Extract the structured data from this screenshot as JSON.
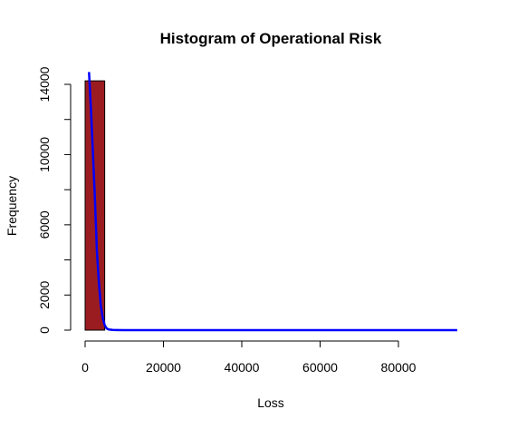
{
  "chart_data": {
    "type": "bar",
    "title": "Histogram of Operational Risk",
    "xlabel": "Loss",
    "ylabel": "Frequency",
    "xlim": [
      0,
      95000
    ],
    "ylim": [
      0,
      14200
    ],
    "x_ticks": [
      0,
      20000,
      40000,
      60000,
      80000
    ],
    "x_tick_labels": [
      "0",
      "20000",
      "40000",
      "60000",
      "80000"
    ],
    "y_ticks": [
      0,
      2000,
      4000,
      6000,
      8000,
      10000,
      12000,
      14000
    ],
    "y_tick_labels": [
      "0",
      "2000",
      "",
      "6000",
      "",
      "10000",
      "",
      "14000"
    ],
    "bins": [
      {
        "start": 0,
        "end": 5000,
        "count": 14200
      }
    ],
    "bar_fill": "#9b1c20",
    "bar_stroke": "#000000",
    "density_curve": {
      "color": "#0000ff",
      "points": [
        [
          1000,
          14700
        ],
        [
          1500,
          12500
        ],
        [
          2000,
          10000
        ],
        [
          2500,
          7500
        ],
        [
          3000,
          4500
        ],
        [
          3500,
          2800
        ],
        [
          4000,
          1400
        ],
        [
          4500,
          700
        ],
        [
          5000,
          280
        ],
        [
          5500,
          100
        ],
        [
          6000,
          40
        ],
        [
          7000,
          10
        ],
        [
          10000,
          2
        ],
        [
          20000,
          0
        ],
        [
          40000,
          0
        ],
        [
          60000,
          0
        ],
        [
          80000,
          0
        ],
        [
          95000,
          0
        ]
      ]
    }
  }
}
